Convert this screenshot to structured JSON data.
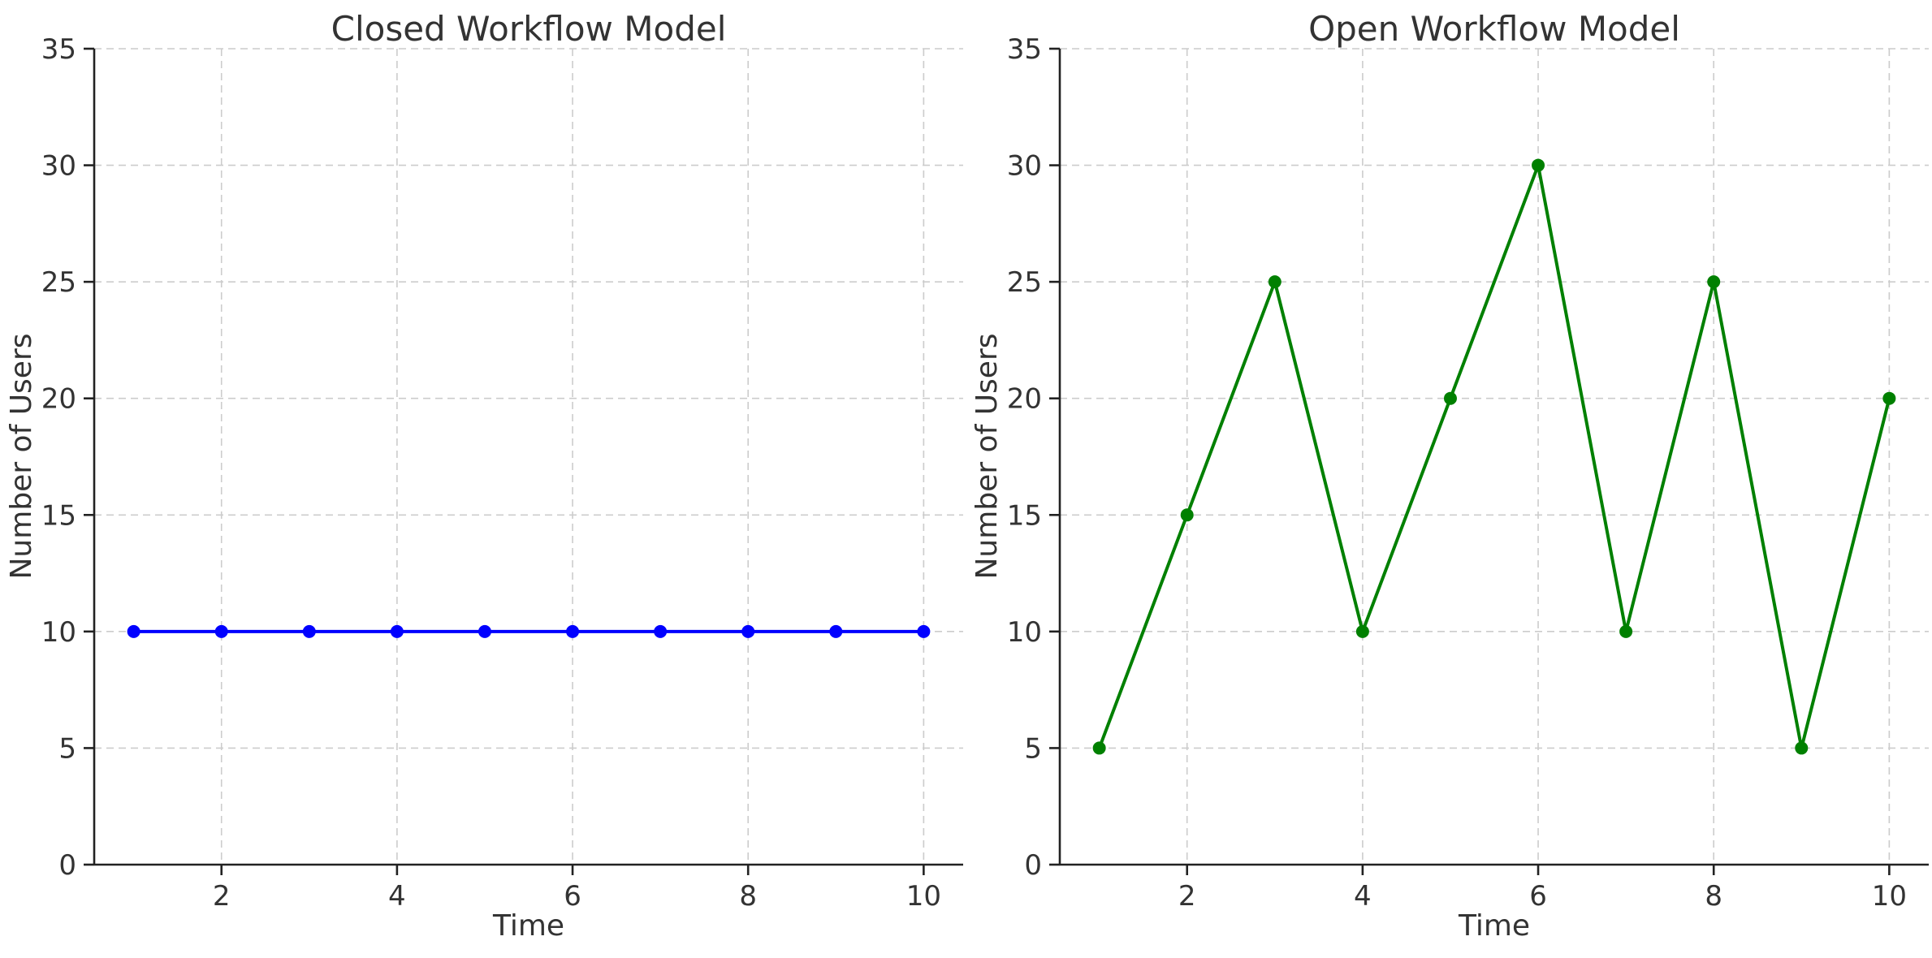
{
  "figure": {
    "background": "#ffffff",
    "text_color": "#333333",
    "spine_color": "#222222",
    "grid_color": "#cccccc"
  },
  "chart_data": [
    {
      "type": "line",
      "title": "Closed Workflow Model",
      "xlabel": "Time",
      "ylabel": "Number of Users",
      "x": [
        1,
        2,
        3,
        4,
        5,
        6,
        7,
        8,
        9,
        10
      ],
      "y": [
        10,
        10,
        10,
        10,
        10,
        10,
        10,
        10,
        10,
        10
      ],
      "series_color": "#0000ff",
      "marker": "circle",
      "xticks": [
        2,
        4,
        6,
        8,
        10
      ],
      "yticks": [
        0,
        5,
        10,
        15,
        20,
        25,
        30,
        35
      ],
      "xlim": [
        0.55,
        10.45
      ],
      "ylim": [
        0,
        35
      ],
      "grid": "dashed",
      "legend": null
    },
    {
      "type": "line",
      "title": "Open Workflow Model",
      "xlabel": "Time",
      "ylabel": "Number of Users",
      "x": [
        1,
        2,
        3,
        4,
        5,
        6,
        7,
        8,
        9,
        10
      ],
      "y": [
        5,
        15,
        25,
        10,
        20,
        30,
        10,
        25,
        5,
        20
      ],
      "series_color": "#008000",
      "marker": "circle",
      "xticks": [
        2,
        4,
        6,
        8,
        10
      ],
      "yticks": [
        0,
        5,
        10,
        15,
        20,
        25,
        30,
        35
      ],
      "xlim": [
        0.55,
        10.45
      ],
      "ylim": [
        0,
        35
      ],
      "grid": "dashed",
      "legend": null
    }
  ]
}
